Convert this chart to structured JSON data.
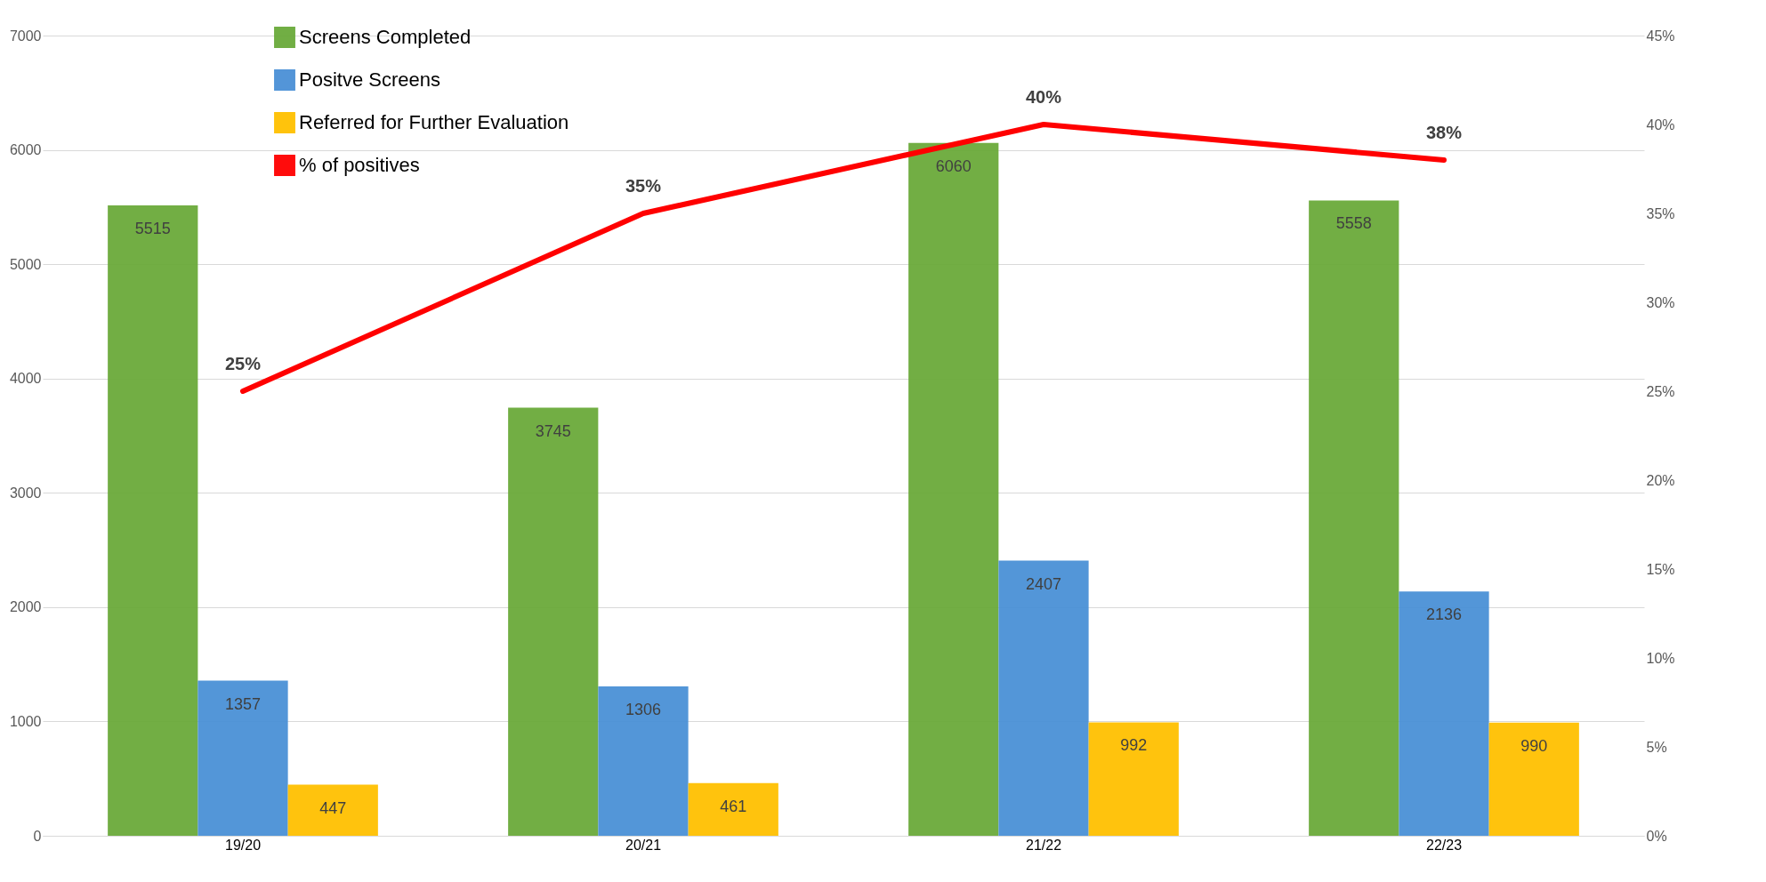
{
  "chart_data": {
    "type": "bar",
    "categories": [
      "19/20",
      "20/21",
      "21/22",
      "22/23"
    ],
    "series": [
      {
        "name": "Screens Completed",
        "type": "bar",
        "color": "#6aaa3a",
        "values": [
          5515,
          3745,
          6060,
          5558
        ],
        "value_labels": [
          "5515",
          "3745",
          "6060",
          "5558"
        ]
      },
      {
        "name": "Positve Screens",
        "type": "bar",
        "color": "#4a90d6",
        "values": [
          1357,
          1306,
          2407,
          2136
        ],
        "value_labels": [
          "1357",
          "1306",
          "2407",
          "2136"
        ]
      },
      {
        "name": "Referred for Further Evaluation",
        "type": "bar",
        "color": "#ffc000",
        "values": [
          447,
          461,
          992,
          990
        ],
        "value_labels": [
          "447",
          "461",
          "992",
          "990"
        ]
      },
      {
        "name": "% of positives",
        "type": "line",
        "axis": "y2",
        "color": "#ff0000",
        "values": [
          25,
          35,
          40,
          38
        ],
        "value_labels": [
          "25%",
          "35%",
          "40%",
          "38%"
        ]
      }
    ],
    "ylim": [
      0,
      7000
    ],
    "yticks": [
      0,
      1000,
      2000,
      3000,
      4000,
      5000,
      6000,
      7000
    ],
    "y2lim": [
      0,
      45
    ],
    "y2ticks": [
      {
        "value": 0,
        "label": "0%"
      },
      {
        "value": 5,
        "label": "5%"
      },
      {
        "value": 10,
        "label": "10%"
      },
      {
        "value": 15,
        "label": "15%"
      },
      {
        "value": 20,
        "label": "20%"
      },
      {
        "value": 25,
        "label": "25%"
      },
      {
        "value": 30,
        "label": "30%"
      },
      {
        "value": 35,
        "label": "35%"
      },
      {
        "value": 40,
        "label": "40%"
      },
      {
        "value": 45,
        "label": "45%"
      }
    ],
    "grid": "y",
    "legend": "top"
  }
}
